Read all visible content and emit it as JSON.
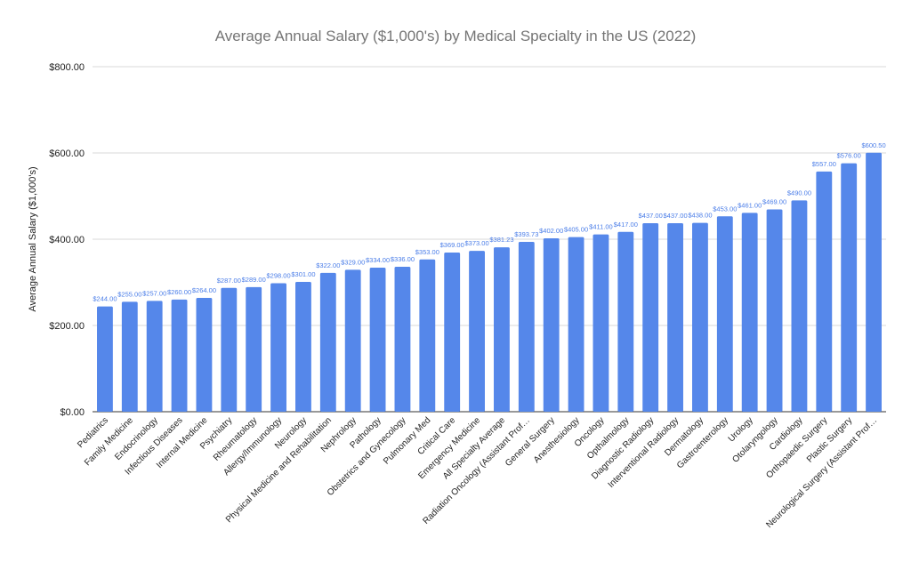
{
  "chart_data": {
    "type": "bar",
    "title": "Average Annual Salary ($1,000's) by Medical Specialty in the US (2022)",
    "xlabel": "",
    "ylabel": "Average Annual Salary ($1,000's)",
    "ylim": [
      0,
      800
    ],
    "yticks": [
      0,
      200,
      400,
      600,
      800
    ],
    "ytick_labels": [
      "$0.00",
      "$200.00",
      "$400.00",
      "$600.00",
      "$800.00"
    ],
    "grid": true,
    "bar_color": "#5587ea",
    "categories": [
      "Pediatrics",
      "Family Medicine",
      "Endocrinology",
      "Infectious Diseases",
      "Internal Medicine",
      "Psychiatry",
      "Rheumatology",
      "Allergy/Immunology",
      "Neurology",
      "Physical Medicine and Rehabilitation",
      "Nephrology",
      "Pathology",
      "Obstetrics and Gynecology",
      "Pulmonary Med",
      "Critical Care",
      "Emergency Medicine",
      "All Specialty Average",
      "Radiation Oncology (Assistant Prof…",
      "General Surgery",
      "Anesthesiology",
      "Oncology",
      "Opthalmology",
      "Diagnostic Radiology",
      "Interventional Radiology",
      "Dermatology",
      "Gastroenterology",
      "Urology",
      "Otolaryngology",
      "Cardiology",
      "Orthopaedic Surgery",
      "Plastic Surgery",
      "Neurological Surgery (Assistant Prof…"
    ],
    "values": [
      244,
      255,
      257,
      260,
      264,
      287,
      289,
      298,
      301,
      322,
      329,
      334,
      336,
      353,
      369,
      373,
      381.23,
      393.73,
      402,
      405,
      411,
      417,
      437,
      437,
      438,
      453,
      461,
      469,
      490,
      557,
      576,
      600.5
    ],
    "data_labels": [
      "$244.00",
      "$255.00",
      "$257.00",
      "$260.00",
      "$264.00",
      "$287.00",
      "$289.00",
      "$298.00",
      "$301.00",
      "$322.00",
      "$329.00",
      "$334.00",
      "$336.00",
      "$353.00",
      "$369.00",
      "$373.00",
      "$381.23",
      "$393.73",
      "$402.00",
      "$405.00",
      "$411.00",
      "$417.00",
      "$437.00",
      "$437.00",
      "$438.00",
      "$453.00",
      "$461.00",
      "$469.00",
      "$490.00",
      "$557.00",
      "$576.00",
      "$600.50"
    ]
  }
}
